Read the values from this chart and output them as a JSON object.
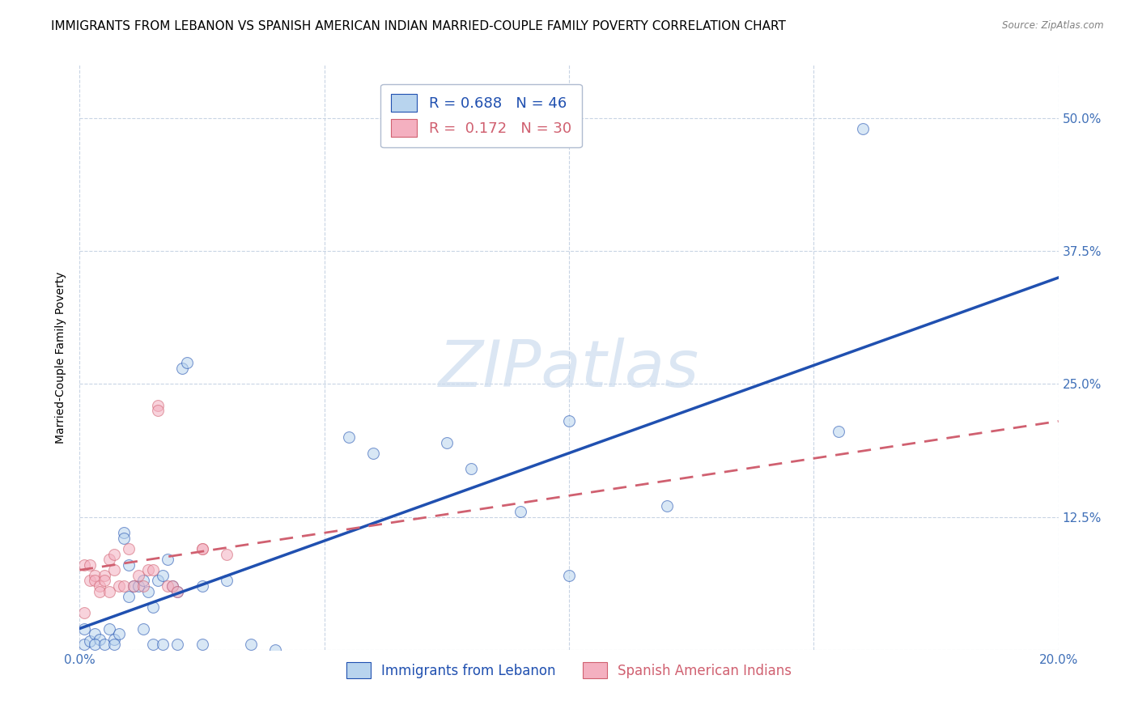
{
  "title": "IMMIGRANTS FROM LEBANON VS SPANISH AMERICAN INDIAN MARRIED-COUPLE FAMILY POVERTY CORRELATION CHART",
  "source": "Source: ZipAtlas.com",
  "ylabel": "Married-Couple Family Poverty",
  "xlim": [
    0.0,
    0.2
  ],
  "ylim": [
    0.0,
    0.55
  ],
  "xticks": [
    0.0,
    0.05,
    0.1,
    0.15,
    0.2
  ],
  "yticks": [
    0.0,
    0.125,
    0.25,
    0.375,
    0.5
  ],
  "xticklabels": [
    "0.0%",
    "",
    "",
    "",
    "20.0%"
  ],
  "yticklabels": [
    "",
    "12.5%",
    "25.0%",
    "37.5%",
    "50.0%"
  ],
  "legend_label_blue": "R = 0.688   N = 46",
  "legend_label_pink": "R =  0.172   N = 30",
  "bottom_label_blue": "Immigrants from Lebanon",
  "bottom_label_pink": "Spanish American Indians",
  "watermark": "ZIPatlas",
  "blue_scatter": [
    [
      0.001,
      0.005
    ],
    [
      0.002,
      0.008
    ],
    [
      0.001,
      0.02
    ],
    [
      0.003,
      0.015
    ],
    [
      0.004,
      0.01
    ],
    [
      0.003,
      0.005
    ],
    [
      0.005,
      0.005
    ],
    [
      0.006,
      0.02
    ],
    [
      0.007,
      0.01
    ],
    [
      0.007,
      0.005
    ],
    [
      0.008,
      0.015
    ],
    [
      0.009,
      0.11
    ],
    [
      0.009,
      0.105
    ],
    [
      0.01,
      0.05
    ],
    [
      0.01,
      0.08
    ],
    [
      0.011,
      0.06
    ],
    [
      0.012,
      0.06
    ],
    [
      0.013,
      0.065
    ],
    [
      0.013,
      0.02
    ],
    [
      0.014,
      0.055
    ],
    [
      0.015,
      0.04
    ],
    [
      0.015,
      0.005
    ],
    [
      0.016,
      0.065
    ],
    [
      0.017,
      0.07
    ],
    [
      0.017,
      0.005
    ],
    [
      0.018,
      0.085
    ],
    [
      0.019,
      0.06
    ],
    [
      0.02,
      0.055
    ],
    [
      0.02,
      0.005
    ],
    [
      0.021,
      0.265
    ],
    [
      0.022,
      0.27
    ],
    [
      0.025,
      0.06
    ],
    [
      0.025,
      0.005
    ],
    [
      0.03,
      0.065
    ],
    [
      0.035,
      0.005
    ],
    [
      0.04,
      0.0
    ],
    [
      0.055,
      0.2
    ],
    [
      0.06,
      0.185
    ],
    [
      0.075,
      0.195
    ],
    [
      0.08,
      0.17
    ],
    [
      0.09,
      0.13
    ],
    [
      0.1,
      0.215
    ],
    [
      0.1,
      0.07
    ],
    [
      0.12,
      0.135
    ],
    [
      0.155,
      0.205
    ],
    [
      0.16,
      0.49
    ]
  ],
  "pink_scatter": [
    [
      0.001,
      0.035
    ],
    [
      0.001,
      0.08
    ],
    [
      0.002,
      0.08
    ],
    [
      0.002,
      0.065
    ],
    [
      0.003,
      0.07
    ],
    [
      0.003,
      0.065
    ],
    [
      0.004,
      0.06
    ],
    [
      0.004,
      0.055
    ],
    [
      0.005,
      0.07
    ],
    [
      0.005,
      0.065
    ],
    [
      0.006,
      0.055
    ],
    [
      0.006,
      0.085
    ],
    [
      0.007,
      0.09
    ],
    [
      0.007,
      0.075
    ],
    [
      0.008,
      0.06
    ],
    [
      0.009,
      0.06
    ],
    [
      0.01,
      0.095
    ],
    [
      0.011,
      0.06
    ],
    [
      0.012,
      0.07
    ],
    [
      0.013,
      0.06
    ],
    [
      0.014,
      0.075
    ],
    [
      0.015,
      0.075
    ],
    [
      0.016,
      0.23
    ],
    [
      0.016,
      0.225
    ],
    [
      0.018,
      0.06
    ],
    [
      0.019,
      0.06
    ],
    [
      0.02,
      0.055
    ],
    [
      0.025,
      0.095
    ],
    [
      0.025,
      0.095
    ],
    [
      0.03,
      0.09
    ]
  ],
  "blue_line_x": [
    0.0,
    0.2
  ],
  "blue_line_y": [
    0.02,
    0.35
  ],
  "pink_line_x": [
    0.0,
    0.2
  ],
  "pink_line_y": [
    0.075,
    0.215
  ],
  "scatter_color_blue": "#b8d4ee",
  "scatter_color_pink": "#f4b0c0",
  "line_color_blue": "#2050b0",
  "line_color_pink": "#d06070",
  "background_color": "#ffffff",
  "grid_color": "#c8d4e4",
  "title_fontsize": 11,
  "axis_fontsize": 10,
  "tick_fontsize": 11,
  "scatter_size": 100,
  "scatter_alpha": 0.55,
  "scatter_linewidth": 0.8
}
